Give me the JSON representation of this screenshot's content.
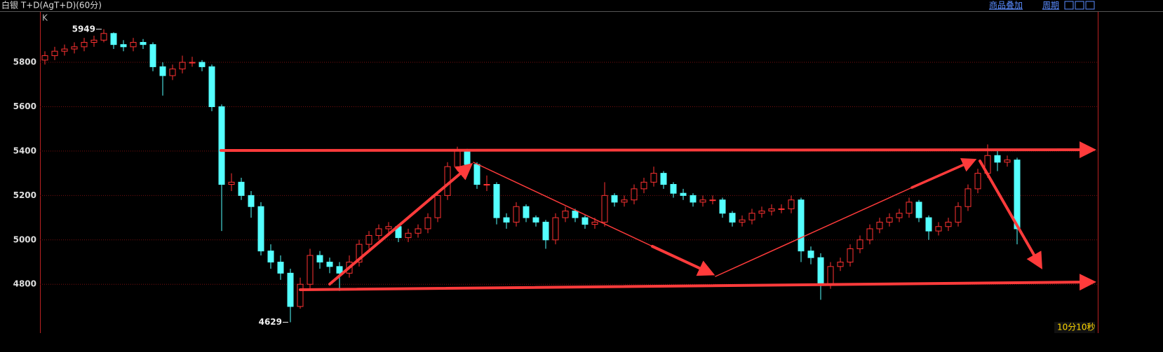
{
  "header": {
    "title": "白银 T+D(AgT+D)(60分)",
    "links": [
      "商品叠加",
      "周期"
    ]
  },
  "chart_data": {
    "type": "candlestick",
    "label": "K",
    "open": [
      5810,
      5830,
      5850,
      5860,
      5870,
      5890,
      5900,
      5930,
      5880,
      5870,
      5890,
      5880,
      5780,
      5740,
      5770,
      5800,
      5800,
      5780,
      5600,
      5250,
      5260,
      5200,
      5150,
      4950,
      4900,
      4850,
      4700,
      4800,
      4930,
      4900,
      4880,
      4850,
      4900,
      4980,
      5020,
      5050,
      5060,
      5010,
      5030,
      5050,
      5100,
      5200,
      5330,
      5400,
      5340,
      5250,
      5250,
      5100,
      5080,
      5150,
      5100,
      5080,
      5000,
      5100,
      5130,
      5100,
      5070,
      5080,
      5200,
      5170,
      5180,
      5230,
      5260,
      5300,
      5250,
      5210,
      5200,
      5170,
      5180,
      5180,
      5120,
      5080,
      5090,
      5120,
      5130,
      5140,
      5140,
      5180,
      4950,
      4920,
      4800,
      4880,
      4900,
      4960,
      5000,
      5050,
      5080,
      5100,
      5120,
      5170,
      5100,
      5040,
      5060,
      5080,
      5150,
      5230,
      5300,
      5380,
      5350,
      5360
    ],
    "high": [
      5850,
      5870,
      5880,
      5890,
      5910,
      5920,
      5949,
      5935,
      5900,
      5910,
      5905,
      5890,
      5800,
      5790,
      5830,
      5825,
      5810,
      5790,
      5610,
      5300,
      5280,
      5220,
      5170,
      4980,
      4930,
      4870,
      4830,
      4960,
      4950,
      4920,
      4900,
      4930,
      5000,
      5040,
      5070,
      5080,
      5070,
      5050,
      5070,
      5120,
      5220,
      5350,
      5420,
      5410,
      5350,
      5290,
      5260,
      5120,
      5170,
      5160,
      5110,
      5090,
      5120,
      5150,
      5140,
      5110,
      5100,
      5260,
      5210,
      5200,
      5250,
      5280,
      5330,
      5310,
      5260,
      5230,
      5210,
      5200,
      5200,
      5190,
      5130,
      5110,
      5140,
      5150,
      5160,
      5160,
      5200,
      5190,
      4970,
      4940,
      4900,
      4920,
      4980,
      5020,
      5070,
      5100,
      5120,
      5140,
      5190,
      5180,
      5110,
      5080,
      5100,
      5170,
      5250,
      5320,
      5430,
      5400,
      5380,
      5370
    ],
    "low": [
      5790,
      5810,
      5830,
      5840,
      5850,
      5870,
      5890,
      5860,
      5850,
      5850,
      5860,
      5760,
      5650,
      5720,
      5750,
      5780,
      5760,
      5580,
      5040,
      5220,
      5180,
      5100,
      4930,
      4870,
      4820,
      4629,
      4690,
      4780,
      4870,
      4850,
      4770,
      4830,
      4880,
      4960,
      5000,
      5030,
      4990,
      4990,
      5010,
      5030,
      5080,
      5180,
      5310,
      5320,
      5230,
      5220,
      5070,
      5050,
      5060,
      5080,
      5060,
      4960,
      4980,
      5080,
      5080,
      5050,
      5050,
      5060,
      5150,
      5150,
      5160,
      5210,
      5240,
      5230,
      5190,
      5180,
      5150,
      5150,
      5160,
      5100,
      5060,
      5060,
      5070,
      5100,
      5110,
      5120,
      5120,
      4900,
      4890,
      4730,
      4780,
      4860,
      4880,
      4940,
      4980,
      5030,
      5060,
      5080,
      5100,
      5080,
      5000,
      5020,
      5040,
      5060,
      5130,
      5210,
      5280,
      5310,
      5330,
      4980
    ],
    "close": [
      5830,
      5850,
      5860,
      5870,
      5890,
      5900,
      5930,
      5880,
      5870,
      5890,
      5880,
      5780,
      5740,
      5770,
      5800,
      5800,
      5780,
      5600,
      5250,
      5260,
      5200,
      5150,
      4950,
      4900,
      4850,
      4700,
      4800,
      4930,
      4900,
      4880,
      4850,
      4900,
      4980,
      5020,
      5050,
      5060,
      5010,
      5030,
      5050,
      5100,
      5200,
      5330,
      5400,
      5340,
      5250,
      5250,
      5100,
      5080,
      5150,
      5100,
      5080,
      5000,
      5100,
      5130,
      5100,
      5070,
      5080,
      5200,
      5170,
      5180,
      5230,
      5260,
      5300,
      5250,
      5210,
      5200,
      5170,
      5180,
      5180,
      5120,
      5080,
      5090,
      5120,
      5130,
      5140,
      5140,
      5180,
      4950,
      4920,
      4800,
      4880,
      4900,
      4960,
      5000,
      5050,
      5080,
      5100,
      5120,
      5170,
      5100,
      5040,
      5060,
      5080,
      5150,
      5230,
      5300,
      5380,
      5350,
      5360,
      5050
    ],
    "ylim": [
      4580,
      6024
    ],
    "yticks": [
      4800,
      5000,
      5200,
      5400,
      5600,
      5800
    ],
    "grid": true,
    "up_color": "#ff3232",
    "down_color": "#54ffff",
    "max_label": 5949,
    "min_label": 4629
  },
  "footer": {
    "timer": "10分10秒"
  }
}
